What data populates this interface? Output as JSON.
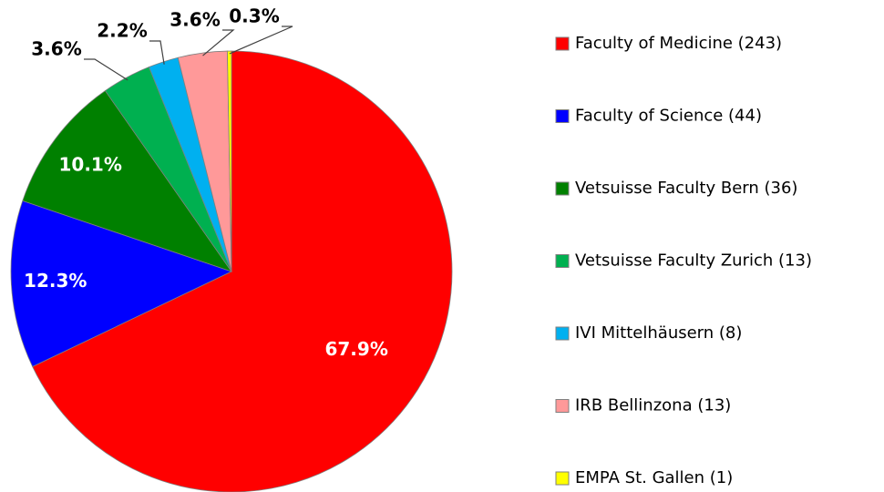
{
  "chart_data": {
    "type": "pie",
    "categories": [
      "Faculty of Medicine (243)",
      "Faculty of Science (44)",
      "Vetsuisse Faculty Bern (36)",
      "Vetsuisse Faculty Zurich (13)",
      "IVI Mittelhäusern (8)",
      "IRB Bellinzona (13)",
      "EMPA St. Gallen (1)"
    ],
    "values": [
      67.9,
      12.3,
      10.1,
      3.6,
      2.2,
      3.6,
      0.3
    ],
    "value_labels": [
      "67.9%",
      "12.3%",
      "10.1%",
      "3.6%",
      "2.2%",
      "3.6%",
      "0.3%"
    ],
    "colors": [
      "#ff0000",
      "#0000ff",
      "#008000",
      "#00b050",
      "#00b0f0",
      "#ff9999",
      "#ffff00"
    ],
    "legend": "right"
  }
}
